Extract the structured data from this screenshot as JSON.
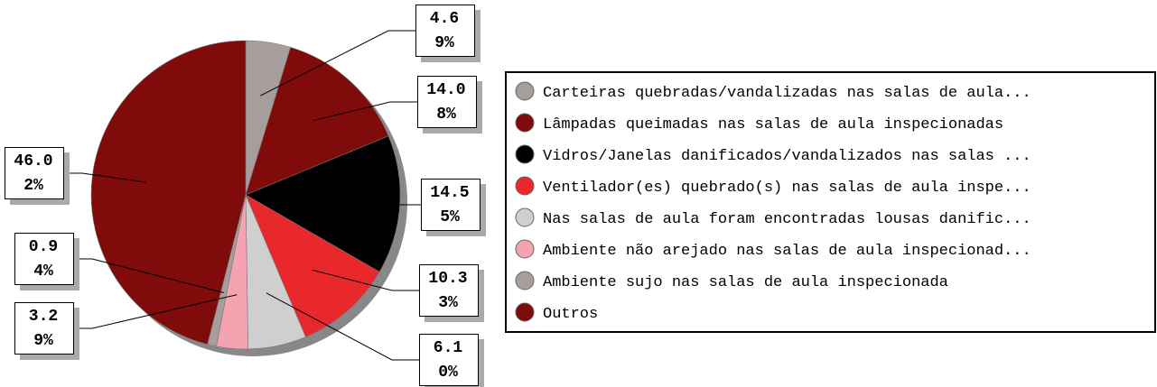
{
  "chart_data": {
    "type": "pie",
    "categories": [
      "Carteiras quebradas/vandalizadas nas salas de aula...",
      "Lâmpadas queimadas nas salas de aula inspecionadas",
      "Vidros/Janelas danificados/vandalizados nas salas ...",
      "Ventilador(es) quebrado(s) nas salas de aula inspe...",
      "Nas salas de aula foram encontradas lousas danific...",
      "Ambiente não arejado nas salas de aula inspecionad...",
      "Ambiente sujo nas salas de aula inspecionada",
      "Outros"
    ],
    "values": [
      4.69,
      14.08,
      14.55,
      10.33,
      6.1,
      3.29,
      0.94,
      46.02
    ],
    "value_labels": [
      "4.69%",
      "14.08%",
      "14.55%",
      "10.33%",
      "6.10%",
      "3.29%",
      "0.94%",
      "46.02%"
    ],
    "colors": [
      "#a79d9d",
      "#800b0b",
      "#000000",
      "#e9282b",
      "#d0cfcf",
      "#f5a3b0",
      "#a79d9d",
      "#800b0b"
    ],
    "legend": "right"
  }
}
